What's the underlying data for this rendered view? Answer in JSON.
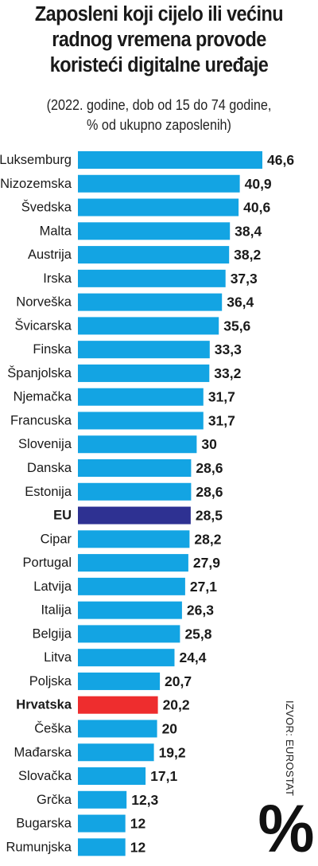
{
  "header": {
    "title_lines": [
      "Zaposleni koji cijelo ili većinu",
      "radnog vremena provode",
      "koristeći digitalne uređaje"
    ],
    "subtitle_lines": [
      "(2022. godine, dob od 15 do 74 godine,",
      "% od ukupno zaposlenih)"
    ]
  },
  "source": "IZVOR: EUROSTAT",
  "unit_symbol": "%",
  "colors": {
    "default": "#13a4e3",
    "eu": "#2e3192",
    "highlight": "#ee2d2e"
  },
  "chart_data": {
    "type": "bar",
    "orientation": "horizontal",
    "title": "Zaposleni koji cijelo ili većinu radnog vremena provode koristeći digitalne uređaje",
    "subtitle": "(2022. godine, dob od 15 do 74 godine, % od ukupno zaposlenih)",
    "unit": "%",
    "xlim": [
      0,
      46.6
    ],
    "grid": false,
    "categories": [
      "Luksemburg",
      "Nizozemska",
      "Švedska",
      "Malta",
      "Austrija",
      "Irska",
      "Norveška",
      "Švicarska",
      "Finska",
      "Španjolska",
      "Njemačka",
      "Francuska",
      "Slovenija",
      "Danska",
      "Estonija",
      "EU",
      "Cipar",
      "Portugal",
      "Latvija",
      "Italija",
      "Belgija",
      "Litva",
      "Poljska",
      "Hrvatska",
      "Češka",
      "Mađarska",
      "Slovačka",
      "Grčka",
      "Bugarska",
      "Rumunjska"
    ],
    "values": [
      46.6,
      40.9,
      40.6,
      38.4,
      38.2,
      37.3,
      36.4,
      35.6,
      33.3,
      33.2,
      31.7,
      31.7,
      30,
      28.6,
      28.6,
      28.5,
      28.2,
      27.9,
      27.1,
      26.3,
      25.8,
      24.4,
      20.7,
      20.2,
      20,
      19.2,
      17.1,
      12.3,
      12,
      12
    ],
    "value_labels": [
      "46,6",
      "40,9",
      "40,6",
      "38,4",
      "38,2",
      "37,3",
      "36,4",
      "35,6",
      "33,3",
      "33,2",
      "31,7",
      "31,7",
      "30",
      "28,6",
      "28,6",
      "28,5",
      "28,2",
      "27,9",
      "27,1",
      "26,3",
      "25,8",
      "24,4",
      "20,7",
      "20,2",
      "20",
      "19,2",
      "17,1",
      "12,3",
      "12",
      "12"
    ],
    "emphasis": {
      "EU": "eu",
      "Hrvatska": "highlight"
    }
  }
}
